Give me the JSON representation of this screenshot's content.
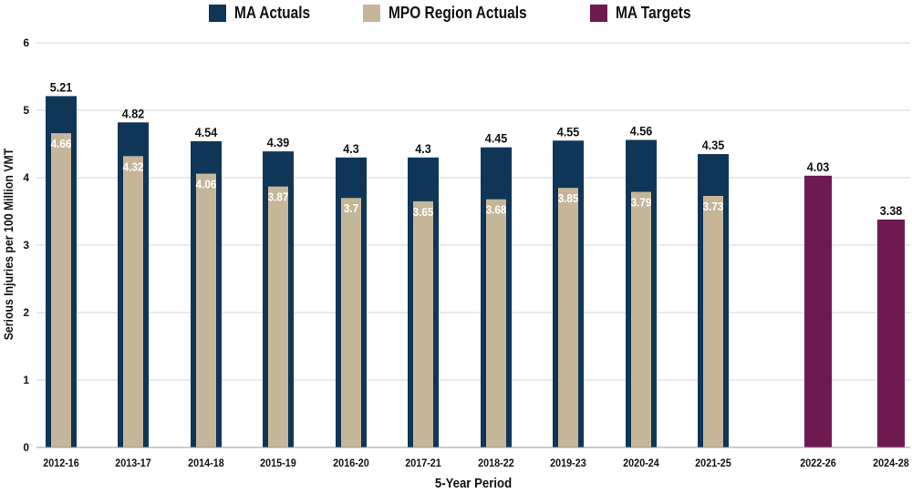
{
  "chart_data": {
    "type": "bar",
    "title": "",
    "xlabel": "5-Year Period",
    "ylabel": "Serious Injuries per 100 Million VMT",
    "ylim": [
      0,
      6
    ],
    "yticks": [
      0,
      1,
      2,
      3,
      4,
      5,
      6
    ],
    "grid": true,
    "legend_position": "top-center",
    "categories": [
      "2012-16",
      "2013-17",
      "2014-18",
      "2015-19",
      "2016-20",
      "2017-21",
      "2018-22",
      "2019-23",
      "2020-24",
      "2021-25",
      "2022-26",
      "2024-28"
    ],
    "series": [
      {
        "name": "MA Actuals",
        "color": "#0f3557",
        "values": [
          5.21,
          4.82,
          4.54,
          4.39,
          4.3,
          4.3,
          4.45,
          4.55,
          4.56,
          4.35,
          null,
          null
        ],
        "labels": [
          "5.21",
          "4.82",
          "4.54",
          "4.39",
          "4.3",
          "4.3",
          "4.45",
          "4.55",
          "4.56",
          "4.35",
          "",
          ""
        ]
      },
      {
        "name": "MPO Region Actuals",
        "color": "#c5b69a",
        "values": [
          4.66,
          4.32,
          4.06,
          3.87,
          3.7,
          3.65,
          3.68,
          3.85,
          3.79,
          3.73,
          null,
          null
        ],
        "labels": [
          "4.66",
          "4.32",
          "4.06",
          "3.87",
          "3.7",
          "3.65",
          "3.68",
          "3.85",
          "3.79",
          "3.73",
          "",
          ""
        ]
      },
      {
        "name": "MA Targets",
        "color": "#6e1a51",
        "values": [
          null,
          null,
          null,
          null,
          null,
          null,
          null,
          null,
          null,
          null,
          4.03,
          3.38
        ],
        "labels": [
          "",
          "",
          "",
          "",
          "",
          "",
          "",
          "",
          "",
          "",
          "4.03",
          "3.38"
        ]
      }
    ]
  }
}
